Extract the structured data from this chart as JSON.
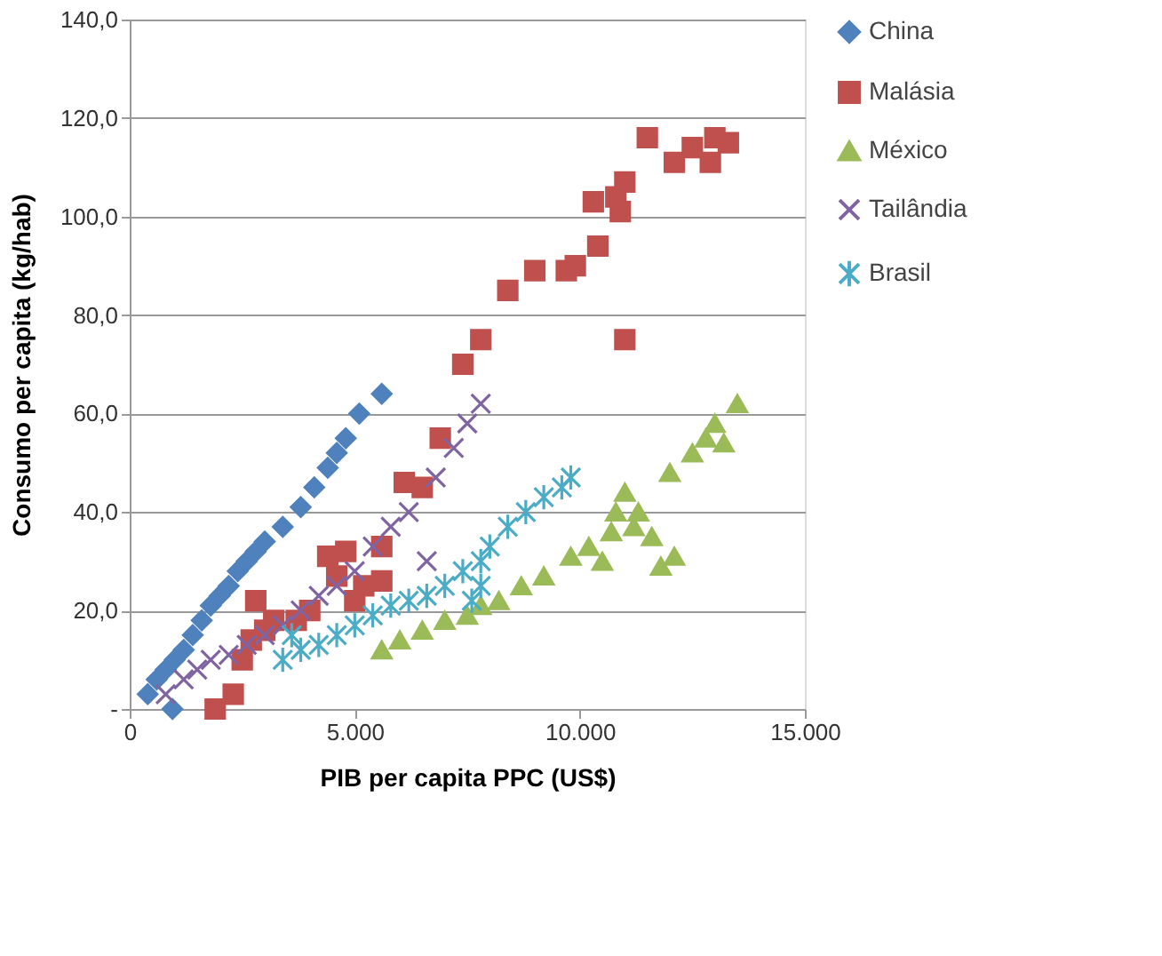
{
  "chart_data": {
    "type": "scatter",
    "xlabel": "PIB per capita PPC (US$)",
    "ylabel": "Consumo per capita  (kg/hab)",
    "xlim": [
      0,
      15000
    ],
    "xticks": [
      0,
      {
        "value": 5000,
        "label": "5.000"
      },
      {
        "value": 10000,
        "label": "10.000"
      },
      {
        "value": 15000,
        "label": "15.000"
      }
    ],
    "ylim": [
      0,
      140
    ],
    "yticks": [
      {
        "value": 0,
        "label": "-"
      },
      {
        "value": 20,
        "label": "20,0"
      },
      {
        "value": 40,
        "label": "40,0"
      },
      {
        "value": 60,
        "label": "60,0"
      },
      {
        "value": 80,
        "label": "80,0"
      },
      {
        "value": 100,
        "label": "100,0"
      },
      {
        "value": 120,
        "label": "120,0"
      },
      {
        "value": 140,
        "label": "140,0"
      }
    ],
    "grid": "y",
    "legend": "right",
    "series": [
      {
        "name": "China",
        "color": "#4f81bd",
        "marker": "diamond",
        "x": [
          400,
          600,
          800,
          950,
          1000,
          1200,
          1400,
          1600,
          1800,
          2000,
          2200,
          2400,
          2600,
          2800,
          3000,
          3400,
          3800,
          4100,
          4400,
          4600,
          4800,
          5100,
          5600
        ],
        "values": [
          3,
          6,
          8,
          0,
          10,
          12,
          15,
          18,
          21,
          23,
          25,
          28,
          30,
          32,
          34,
          37,
          41,
          45,
          49,
          52,
          55,
          60,
          64
        ]
      },
      {
        "name": "Malásia",
        "color": "#c0504d",
        "marker": "square",
        "x": [
          1900,
          2300,
          2500,
          2700,
          2800,
          3000,
          3200,
          3700,
          4000,
          4400,
          4600,
          4800,
          5000,
          5200,
          5600,
          5600,
          6100,
          6500,
          6900,
          7400,
          7800,
          8400,
          9000,
          9700,
          9900,
          10300,
          10400,
          10800,
          10900,
          11000,
          11000,
          11500,
          12100,
          12500,
          12900,
          13000,
          13300
        ],
        "values": [
          0,
          3,
          10,
          14,
          22,
          16,
          18,
          18,
          20,
          31,
          27,
          32,
          22,
          25,
          33,
          26,
          46,
          45,
          55,
          70,
          75,
          85,
          89,
          89,
          90,
          103,
          94,
          104,
          101,
          107,
          75,
          116,
          111,
          114,
          111,
          116,
          115
        ]
      },
      {
        "name": "México",
        "color": "#9bbb59",
        "marker": "triangle",
        "x": [
          5600,
          6000,
          6500,
          7000,
          7500,
          7800,
          8200,
          8700,
          9200,
          9800,
          10200,
          10500,
          10700,
          10800,
          11000,
          11200,
          11300,
          11600,
          11800,
          12100,
          12000,
          12500,
          12800,
          13000,
          13200,
          13500
        ],
        "values": [
          12,
          14,
          16,
          18,
          19,
          21,
          22,
          25,
          27,
          31,
          33,
          30,
          36,
          40,
          44,
          37,
          40,
          35,
          29,
          31,
          48,
          52,
          55,
          58,
          54,
          62
        ]
      },
      {
        "name": "Tailândia",
        "color": "#8064a2",
        "marker": "cross",
        "x": [
          800,
          1200,
          1500,
          1800,
          2200,
          2600,
          3000,
          3400,
          3800,
          4200,
          4600,
          5000,
          5400,
          5800,
          6200,
          6600,
          6800,
          7200,
          7500,
          7800
        ],
        "values": [
          3,
          6,
          8,
          10,
          11,
          13,
          15,
          17,
          20,
          23,
          25,
          28,
          33,
          37,
          40,
          30,
          47,
          53,
          58,
          62
        ]
      },
      {
        "name": "Brasil",
        "color": "#4bacc6",
        "marker": "cross",
        "x": [
          3400,
          3600,
          3800,
          4200,
          4600,
          5000,
          5400,
          5800,
          6200,
          6600,
          7000,
          7400,
          7600,
          7800,
          7800,
          8000,
          8400,
          8800,
          9200,
          9600,
          9800
        ],
        "values": [
          10,
          15,
          12,
          13,
          15,
          17,
          19,
          21,
          22,
          23,
          25,
          28,
          22,
          25,
          30,
          33,
          37,
          40,
          43,
          45,
          47
        ]
      }
    ]
  }
}
